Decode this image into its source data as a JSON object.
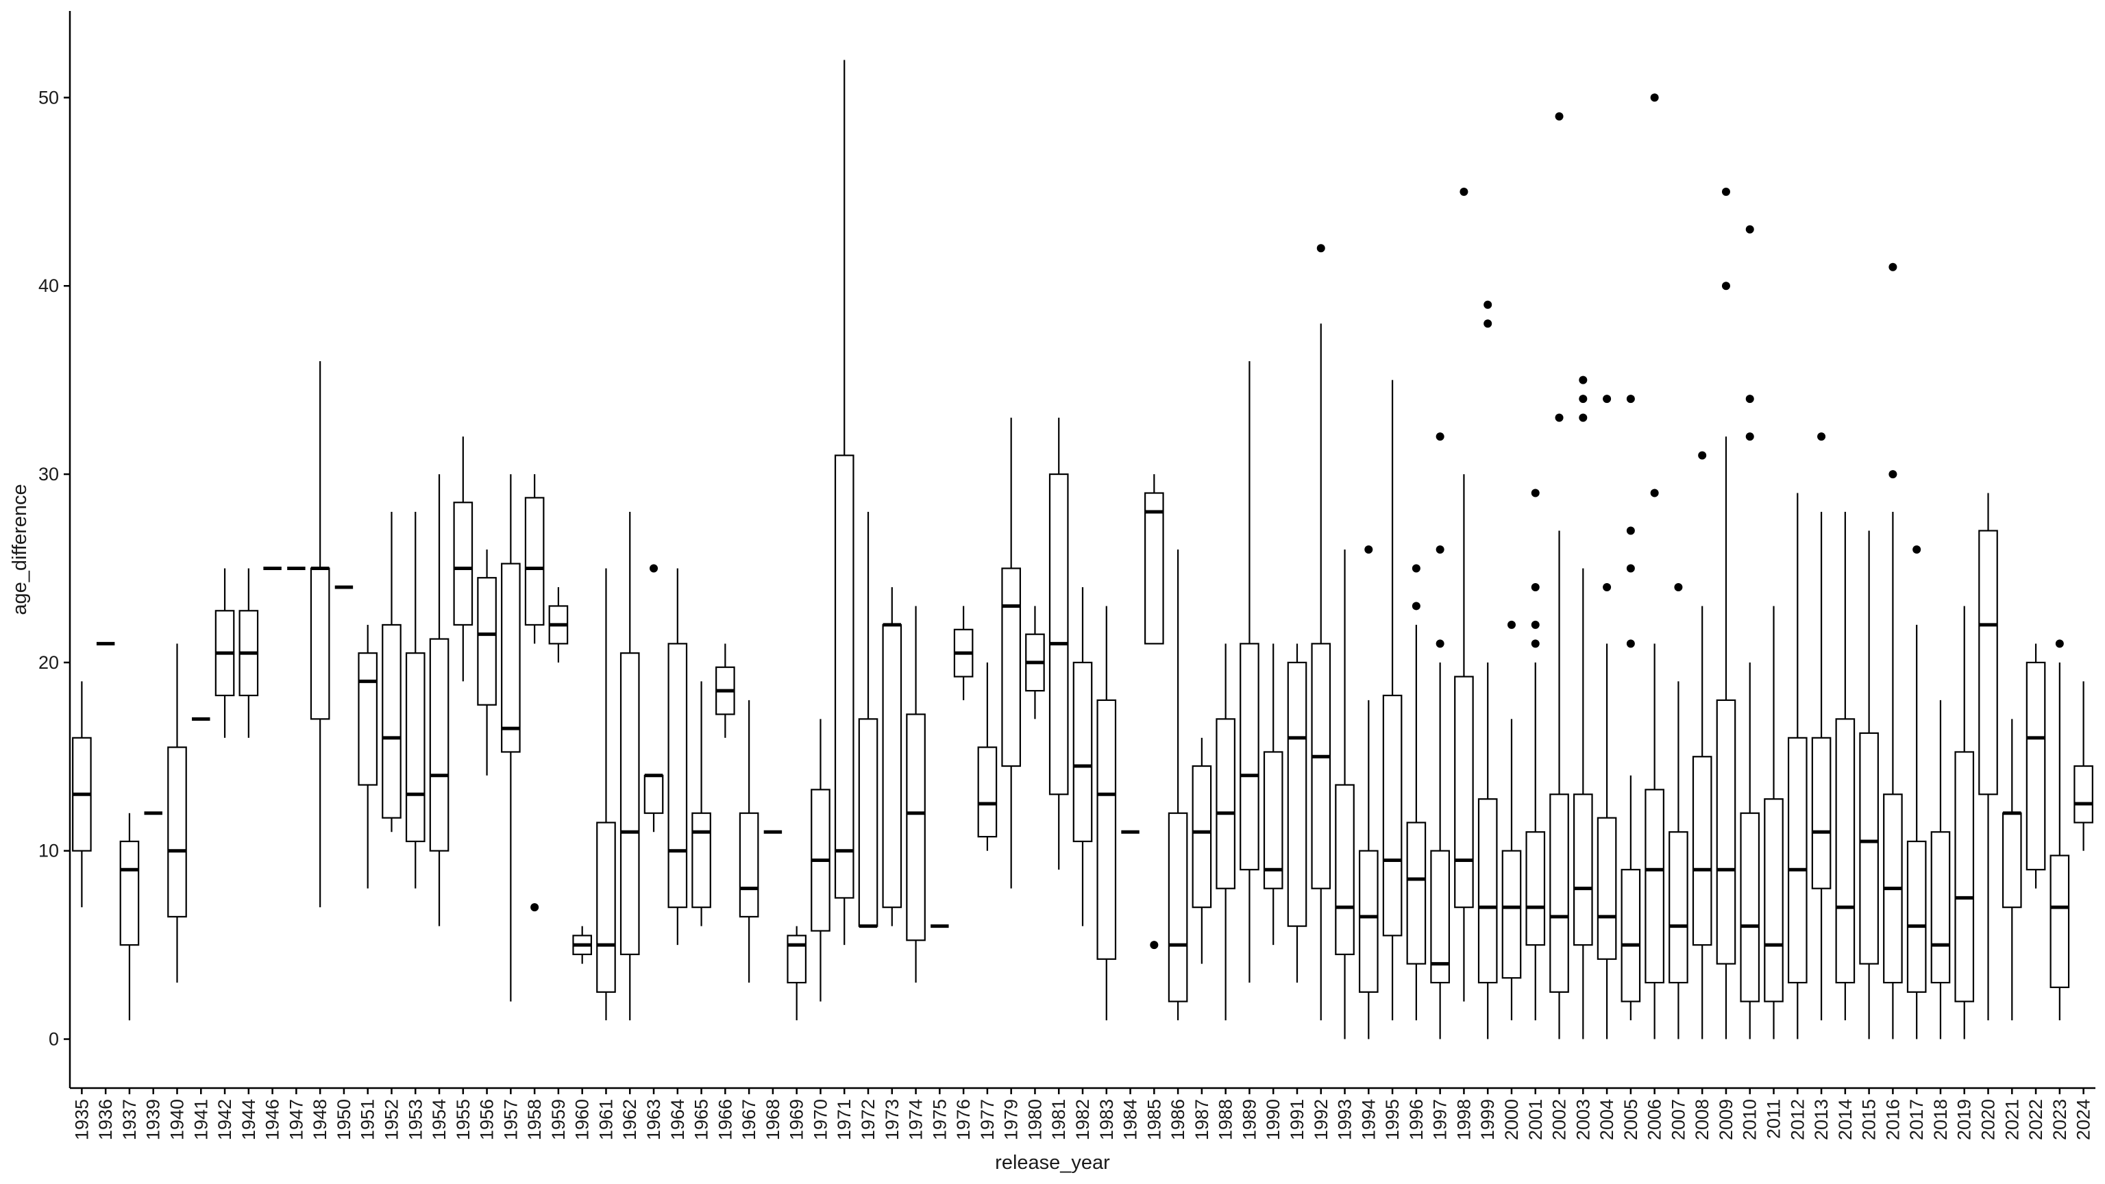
{
  "chart_data": {
    "type": "box",
    "x_label": "release_year",
    "y_label": "age_difference",
    "categories": [
      "1935",
      "1936",
      "1937",
      "1939",
      "1940",
      "1941",
      "1942",
      "1944",
      "1946",
      "1947",
      "1948",
      "1950",
      "1951",
      "1952",
      "1953",
      "1954",
      "1955",
      "1956",
      "1957",
      "1958",
      "1959",
      "1960",
      "1961",
      "1962",
      "1963",
      "1964",
      "1965",
      "1966",
      "1967",
      "1968",
      "1969",
      "1970",
      "1971",
      "1972",
      "1973",
      "1974",
      "1975",
      "1976",
      "1977",
      "1979",
      "1980",
      "1981",
      "1982",
      "1983",
      "1984",
      "1985",
      "1986",
      "1987",
      "1988",
      "1989",
      "1990",
      "1991",
      "1992",
      "1993",
      "1994",
      "1995",
      "1996",
      "1997",
      "1998",
      "1999",
      "2000",
      "2001",
      "2002",
      "2003",
      "2004",
      "2005",
      "2006",
      "2007",
      "2008",
      "2009",
      "2010",
      "2011",
      "2012",
      "2013",
      "2014",
      "2015",
      "2016",
      "2017",
      "2018",
      "2019",
      "2020",
      "2021",
      "2022",
      "2023",
      "2024"
    ],
    "whisker_low": [
      7,
      21,
      1,
      12,
      3,
      17,
      16,
      16,
      25,
      25,
      7,
      24,
      8,
      11,
      8,
      6,
      19,
      14,
      2,
      21,
      20,
      4,
      1,
      1,
      11,
      5,
      6,
      16,
      3,
      11,
      1,
      2,
      5,
      6,
      6,
      3,
      6,
      18,
      10,
      8,
      17,
      9,
      6,
      1,
      11,
      21,
      1,
      4,
      1,
      3,
      5,
      3,
      1,
      0,
      0,
      1,
      1,
      0,
      2,
      0,
      1,
      1,
      0,
      0,
      0,
      1,
      0,
      0,
      0,
      0,
      0,
      0,
      0,
      1,
      1,
      0,
      0,
      0,
      0,
      0,
      1,
      1,
      8,
      1,
      10
    ],
    "q1": [
      10,
      21,
      5,
      12,
      6.5,
      17,
      18.25,
      18.25,
      25,
      25,
      17,
      24,
      13.5,
      11.75,
      10.5,
      10,
      22,
      17.75,
      15.25,
      22,
      21,
      4.5,
      2.5,
      4.5,
      12,
      7,
      7,
      17.25,
      6.5,
      11,
      3,
      5.75,
      7.5,
      6,
      7,
      5.25,
      6,
      19.25,
      10.75,
      14.5,
      18.5,
      13,
      10.5,
      4.25,
      11,
      21,
      2,
      7,
      8,
      9,
      8,
      6,
      8,
      4.5,
      2.5,
      5.5,
      4,
      3,
      7,
      3,
      3.25,
      5,
      2.5,
      5,
      4.25,
      2,
      3,
      3,
      5,
      4,
      2,
      2,
      3,
      8,
      3,
      4,
      3,
      2.5,
      3,
      2,
      13,
      7,
      9,
      2.75,
      11.5
    ],
    "median": [
      13,
      21,
      9,
      12,
      10,
      17,
      20.5,
      20.5,
      25,
      25,
      25,
      24,
      19,
      16,
      13,
      14,
      25,
      21.5,
      16.5,
      25,
      22,
      5,
      5,
      11,
      14,
      10,
      11,
      18.5,
      8,
      11,
      5,
      9.5,
      10,
      6,
      22,
      12,
      6,
      20.5,
      12.5,
      23,
      20,
      21,
      14.5,
      13,
      11,
      28,
      5,
      11,
      12,
      14,
      9,
      16,
      15,
      7,
      6.5,
      9.5,
      8.5,
      4,
      9.5,
      7,
      7,
      7,
      6.5,
      8,
      6.5,
      5,
      9,
      6,
      9,
      9,
      6,
      5,
      9,
      11,
      7,
      10.5,
      8,
      6,
      5,
      7.5,
      22,
      12,
      16,
      7,
      12.5
    ],
    "q3": [
      16,
      21,
      10.5,
      12,
      15.5,
      17,
      22.75,
      22.75,
      25,
      25,
      25,
      24,
      20.5,
      22,
      20.5,
      21.25,
      28.5,
      24.5,
      25.25,
      28.75,
      23,
      5.5,
      11.5,
      20.5,
      14,
      21,
      12,
      19.75,
      12,
      11,
      5.5,
      13.25,
      31,
      17,
      22,
      17.25,
      6,
      21.75,
      15.5,
      25,
      21.5,
      30,
      20,
      18,
      11,
      29,
      12,
      14.5,
      17,
      21,
      15.25,
      20,
      21,
      13.5,
      10,
      18.25,
      11.5,
      10,
      19.25,
      12.75,
      10,
      11,
      13,
      13,
      11.75,
      9,
      13.25,
      11,
      15,
      18,
      12,
      12.75,
      16,
      16,
      17,
      16.25,
      13,
      10.5,
      11,
      15.25,
      27,
      12,
      20,
      9.75,
      14.5
    ],
    "whisker_high": [
      19,
      21,
      12,
      12,
      21,
      17,
      25,
      25,
      25,
      25,
      36,
      24,
      22,
      28,
      28,
      30,
      32,
      26,
      30,
      30,
      24,
      6,
      25,
      28,
      14,
      25,
      19,
      21,
      18,
      11,
      6,
      17,
      52,
      28,
      24,
      23,
      6,
      23,
      20,
      33,
      23,
      33,
      24,
      23,
      11,
      30,
      26,
      16,
      21,
      36,
      21,
      21,
      38,
      26,
      18,
      35,
      22,
      20,
      30,
      20,
      17,
      20,
      27,
      25,
      21,
      14,
      21,
      19,
      23,
      32,
      20,
      23,
      29,
      28,
      28,
      27,
      28,
      22,
      18,
      23,
      29,
      17,
      21,
      20,
      19
    ],
    "outliers": [
      [],
      [],
      [],
      [],
      [],
      [],
      [],
      [],
      [],
      [],
      [],
      [],
      [],
      [],
      [],
      [],
      [],
      [],
      [],
      [
        7
      ],
      [],
      [],
      [],
      [],
      [
        25
      ],
      [],
      [],
      [],
      [],
      [],
      [],
      [],
      [],
      [],
      [],
      [],
      [],
      [],
      [],
      [],
      [],
      [],
      [],
      [],
      [],
      [
        5
      ],
      [],
      [],
      [],
      [],
      [],
      [],
      [
        42
      ],
      [],
      [
        26
      ],
      [],
      [
        23,
        25
      ],
      [
        21,
        26,
        32
      ],
      [
        45
      ],
      [
        38,
        39
      ],
      [
        22
      ],
      [
        21,
        22,
        24,
        29
      ],
      [
        33,
        49
      ],
      [
        33,
        34,
        35
      ],
      [
        24,
        34
      ],
      [
        21,
        25,
        27,
        34
      ],
      [
        29,
        50
      ],
      [
        24
      ],
      [
        31
      ],
      [
        40,
        45
      ],
      [
        32,
        34,
        43
      ],
      [],
      [],
      [
        32
      ],
      [],
      [],
      [
        30,
        41
      ],
      [
        26
      ],
      [],
      [],
      [],
      [],
      [],
      [
        21
      ],
      []
    ],
    "ylim": [
      -2.6,
      54.6
    ],
    "yticks": [
      0,
      10,
      20,
      30,
      40,
      50
    ],
    "color": "#000000",
    "fill": "#ffffff"
  }
}
